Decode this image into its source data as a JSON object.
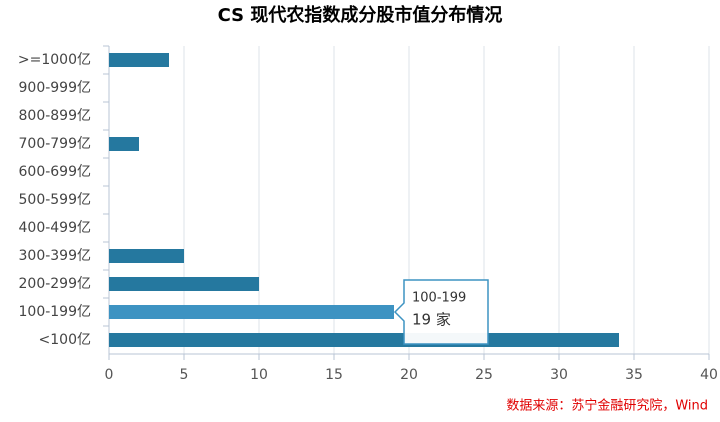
{
  "chart_data": {
    "type": "hbar",
    "title": "CS 现代农指数成分股市值分布情况",
    "categories": [
      ">=1000亿",
      "900-999亿",
      "800-899亿",
      "700-799亿",
      "600-699亿",
      "500-599亿",
      "400-499亿",
      "300-399亿",
      "200-299亿",
      "100-199亿",
      "<100亿"
    ],
    "values": [
      4,
      0,
      0,
      2,
      0,
      0,
      0,
      5,
      10,
      19,
      34
    ],
    "colors": [
      "#25789f",
      "#25789f",
      "#25789f",
      "#25789f",
      "#25789f",
      "#25789f",
      "#25789f",
      "#25789f",
      "#25789f",
      "#3d93c2",
      "#25789f"
    ],
    "xlim": [
      0,
      40
    ],
    "xticks": [
      0,
      5,
      10,
      15,
      20,
      25,
      30,
      35,
      40
    ],
    "grid": true,
    "tooltip": {
      "title": "100-199",
      "text": "19 家"
    },
    "source": "数据来源：苏宁金融研究院，Wind"
  }
}
